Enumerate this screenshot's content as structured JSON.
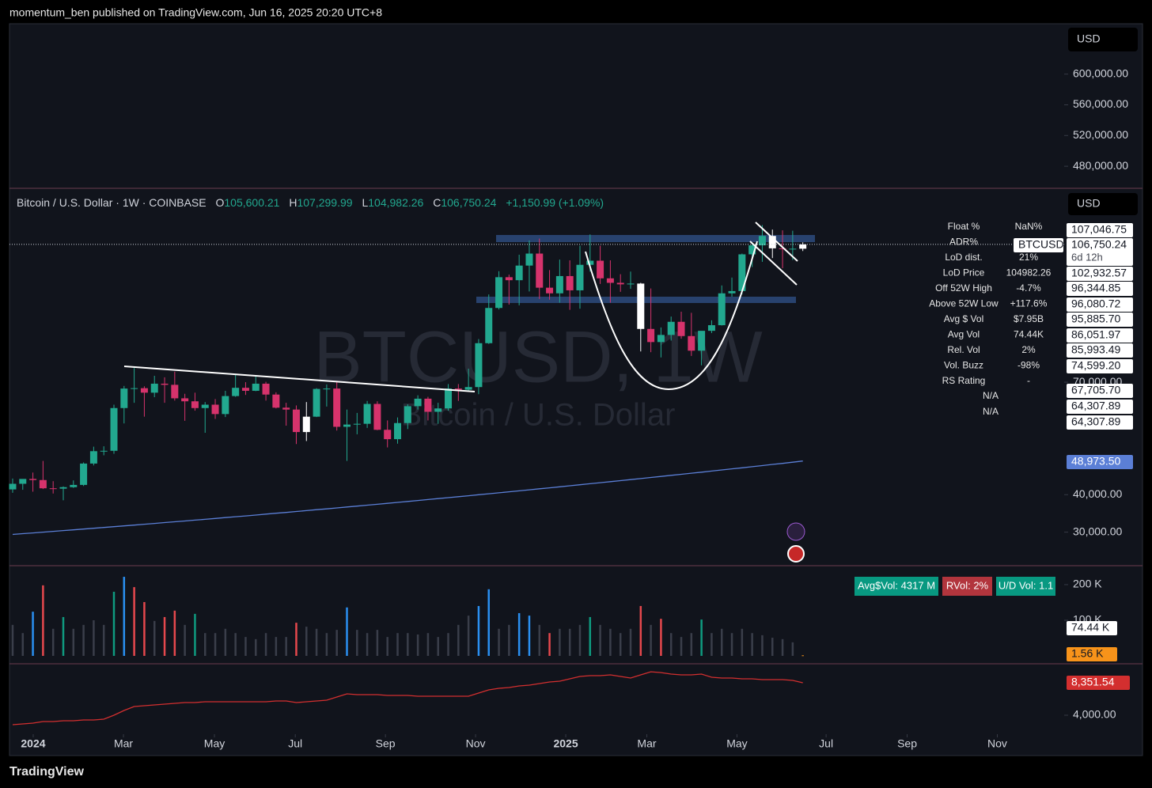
{
  "header": {
    "publisher": "momentum_ben published on TradingView.com, Jun 16, 2025 20:20 UTC+8"
  },
  "chart_data": {
    "type": "candlestick",
    "symbol": "Bitcoin / U.S. Dollar · 1W · COINBASE",
    "ohlc_labels": [
      {
        "key": "O",
        "label": "105,600.21"
      },
      {
        "key": "H",
        "label": "107,299.99"
      },
      {
        "key": "L",
        "label": "104,982.26"
      },
      {
        "key": "C",
        "label": "106,750.24"
      }
    ],
    "change": "+1,150.99 (+1.09%)",
    "watermark": [
      "BTCUSD, 1W",
      "Bitcoin / U.S. Dollar"
    ],
    "currency": "USD",
    "xlim": [
      -0.31,
      103.8
    ],
    "xticks": [
      {
        "value": 2.03,
        "label": "2024"
      },
      {
        "value": 10.94,
        "label": "Mar"
      },
      {
        "value": 19.92,
        "label": "May"
      },
      {
        "value": 27.9,
        "label": "Jul"
      },
      {
        "value": 36.8,
        "label": "Sep"
      },
      {
        "value": 45.7,
        "label": "Nov"
      },
      {
        "value": 54.6,
        "label": "2025"
      },
      {
        "value": 62.6,
        "label": "Mar"
      },
      {
        "value": 71.5,
        "label": "May"
      },
      {
        "value": 80.3,
        "label": "Jul"
      },
      {
        "value": 88.3,
        "label": "Sep"
      },
      {
        "value": 97.2,
        "label": "Nov"
      }
    ],
    "open": [
      41400,
      42900,
      44200,
      43900,
      41700,
      41600,
      42000,
      42600,
      48300,
      51600,
      51700,
      63100,
      68300,
      68400,
      67200,
      69600,
      69300,
      65700,
      64900,
      63100,
      64000,
      61500,
      66300,
      68500,
      67700,
      69600,
      66700,
      63200,
      62700,
      56700,
      60800,
      68200,
      68300,
      58100,
      58700,
      58900,
      64200,
      57300,
      54800,
      59100,
      63600,
      65600,
      62100,
      63000,
      68300,
      68000,
      68700,
      80400,
      89800,
      98000,
      97200,
      101100,
      104300,
      95200,
      93700,
      98300,
      94500,
      101300,
      102400,
      97700,
      96500,
      96100,
      96300,
      84200,
      80700,
      82600,
      86100,
      82300,
      78400,
      83700,
      85200,
      93700,
      94300,
      104100,
      106500,
      109000,
      105700,
      105600,
      105600.21
    ],
    "high": [
      44300,
      43800,
      45900,
      49000,
      43600,
      42200,
      43800,
      48600,
      52800,
      52900,
      64000,
      69000,
      73800,
      68900,
      71700,
      71300,
      72800,
      66900,
      67200,
      64700,
      65500,
      67700,
      71900,
      70000,
      71900,
      70100,
      67300,
      64500,
      63800,
      64700,
      68400,
      69400,
      70000,
      62700,
      61800,
      65000,
      64900,
      59800,
      60600,
      64100,
      66500,
      66100,
      64500,
      69500,
      69500,
      73600,
      81500,
      93400,
      99600,
      98700,
      104000,
      107800,
      108300,
      99900,
      102700,
      102500,
      106400,
      109400,
      106400,
      102500,
      98800,
      99500,
      96500,
      95000,
      84600,
      87500,
      88800,
      88500,
      83600,
      86500,
      95800,
      97900,
      104300,
      107100,
      111900,
      110700,
      110500,
      110400,
      107299.99
    ],
    "low": [
      40500,
      41300,
      40800,
      41500,
      40300,
      38500,
      41800,
      42300,
      47800,
      50500,
      50900,
      59000,
      64500,
      60800,
      66000,
      64500,
      65100,
      59700,
      62400,
      56500,
      60200,
      60700,
      66100,
      66600,
      67600,
      65100,
      63000,
      58400,
      53500,
      54300,
      60700,
      63500,
      57100,
      49000,
      56100,
      57800,
      57200,
      52600,
      53600,
      57500,
      62700,
      59800,
      58900,
      62400,
      65000,
      67600,
      66800,
      80200,
      89400,
      90700,
      90500,
      94200,
      92200,
      92000,
      91200,
      89300,
      89600,
      99500,
      96200,
      91200,
      94100,
      94900,
      78200,
      78000,
      76600,
      81100,
      81600,
      77000,
      74500,
      83100,
      85100,
      92800,
      93400,
      100700,
      102100,
      103100,
      100400,
      102600,
      104982.26
    ],
    "close": [
      42900,
      44200,
      43900,
      41700,
      41600,
      42000,
      42600,
      48300,
      51600,
      51700,
      63100,
      68300,
      68400,
      67200,
      69600,
      69300,
      65700,
      64900,
      63100,
      64000,
      61500,
      66300,
      68500,
      67700,
      69600,
      66700,
      63200,
      62700,
      56700,
      60800,
      68200,
      68300,
      58100,
      58700,
      58900,
      64200,
      57300,
      54800,
      59100,
      63600,
      65600,
      62100,
      63000,
      68300,
      68000,
      68700,
      80400,
      89800,
      98000,
      97200,
      101100,
      104300,
      95200,
      93700,
      98300,
      94500,
      101300,
      102400,
      97700,
      96500,
      96100,
      96300,
      84200,
      80700,
      82600,
      86100,
      82300,
      78400,
      83700,
      85200,
      93700,
      94300,
      104100,
      106500,
      109000,
      105700,
      105600,
      105600,
      106750.24
    ],
    "colors": {
      "up": "#22a88f",
      "down": "#d6336c",
      "white": "#ffffff"
    },
    "white_candles": [
      29,
      62,
      75,
      78
    ],
    "ylim": [
      21270,
      121500
    ],
    "yticks": [
      {
        "value": 70000,
        "label": "70,000.00"
      },
      {
        "value": 40000,
        "label": "40,000.00"
      },
      {
        "value": 30000,
        "label": "30,000.00"
      }
    ],
    "top_pane": {
      "ylim": [
        452300,
        664600
      ],
      "yticks": [
        {
          "value": 600000,
          "label": "600,000.00"
        },
        {
          "value": 560000,
          "label": "560,000.00"
        },
        {
          "value": 520000,
          "label": "520,000.00"
        },
        {
          "value": 480000,
          "label": "480,000.00"
        }
      ]
    },
    "moving_average": {
      "color": "#5b7fd6",
      "label": "48,973.50",
      "values": [
        29400,
        29600,
        29800,
        30010,
        30210,
        30420,
        30620,
        30830,
        31040,
        31250,
        31470,
        31680,
        31890,
        32110,
        32330,
        32550,
        32770,
        32990,
        33210,
        33430,
        33660,
        33890,
        34110,
        34340,
        34570,
        34810,
        35040,
        35270,
        35510,
        35750,
        35990,
        36220,
        36470,
        36710,
        36950,
        37200,
        37440,
        37690,
        37940,
        38190,
        38440,
        38690,
        38950,
        39200,
        39460,
        39720,
        39980,
        40240,
        40500,
        40760,
        41030,
        41290,
        41560,
        41830,
        42100,
        42370,
        42640,
        42910,
        43190,
        43460,
        43740,
        44020,
        44300,
        44580,
        44860,
        45150,
        45430,
        45720,
        46010,
        46300,
        46590,
        46880,
        47170,
        47460,
        47760,
        48060,
        48350,
        48650,
        48973.5
      ]
    },
    "current": {
      "symbol": "BTCUSD",
      "price": "106,750.24",
      "countdown": "6d 12h"
    },
    "price_labels": [
      "107,046.75",
      "102,932.57",
      "96,344.85",
      "96,080.72",
      "95,885.70",
      "86,051.97",
      "85,993.49",
      "74,599.20",
      "67,705.70",
      "64,307.89",
      "64,307.89"
    ],
    "stats": {
      "rows": [
        [
          "Float %",
          "NaN%"
        ],
        [
          "ADR%"
        ],
        [
          "LoD dist.",
          "21%"
        ],
        [
          "LoD Price",
          "104982.26"
        ],
        [
          "Off 52W High",
          "-4.7%"
        ],
        [
          "Above 52W Low",
          "+117.6%"
        ],
        [
          "Avg $ Vol",
          "$7.95B"
        ],
        [
          "Avg Vol",
          "74.44K"
        ],
        [
          "Rel. Vol",
          "2%"
        ],
        [
          "Vol. Buzz",
          "-98%"
        ],
        [
          "RS Rating",
          "-"
        ]
      ],
      "na": [
        "N/A",
        "N/A"
      ]
    },
    "volume": {
      "ylim": [
        -20000,
        251000
      ],
      "yticks": [
        {
          "value": 200000,
          "label": "200 K"
        },
        {
          "value": 100000,
          "label": "100 K"
        }
      ],
      "palette": {
        "n": "#3a3e4a",
        "u": "#0f9a7f",
        "d": "#e5484d",
        "b": "#2a8ff0",
        "o": "#f7931a"
      },
      "kinds": [
        "n",
        "n",
        "b",
        "d",
        "n",
        "u",
        "n",
        "n",
        "n",
        "n",
        "u",
        "b",
        "d",
        "d",
        "n",
        "d",
        "d",
        "n",
        "u",
        "n",
        "n",
        "n",
        "n",
        "n",
        "n",
        "n",
        "n",
        "n",
        "d",
        "n",
        "n",
        "n",
        "n",
        "b",
        "n",
        "n",
        "n",
        "n",
        "n",
        "n",
        "n",
        "n",
        "n",
        "n",
        "n",
        "n",
        "b",
        "b",
        "n",
        "n",
        "b",
        "b",
        "n",
        "d",
        "n",
        "n",
        "n",
        "u",
        "n",
        "n",
        "n",
        "n",
        "d",
        "n",
        "d",
        "n",
        "n",
        "n",
        "u",
        "n",
        "n",
        "n",
        "n",
        "n",
        "n",
        "n",
        "n",
        "n",
        "o"
      ],
      "values": [
        87000,
        64000,
        124000,
        198000,
        76000,
        109000,
        76000,
        87000,
        100000,
        87000,
        180000,
        222000,
        193000,
        151000,
        98000,
        109000,
        127000,
        87000,
        118000,
        64000,
        64000,
        76000,
        64000,
        53000,
        47000,
        64000,
        53000,
        53000,
        93000,
        82000,
        76000,
        64000,
        73000,
        136000,
        73000,
        64000,
        73000,
        53000,
        64000,
        64000,
        60000,
        64000,
        53000,
        64000,
        87000,
        113000,
        140000,
        187000,
        76000,
        87000,
        120000,
        113000,
        87000,
        64000,
        76000,
        76000,
        87000,
        109000,
        87000,
        76000,
        64000,
        76000,
        140000,
        87000,
        104000,
        64000,
        53000,
        64000,
        102000,
        64000,
        76000,
        64000,
        76000,
        64000,
        58000,
        51000,
        47000,
        38000,
        1560
      ],
      "badges": [
        {
          "label": "Avg$Vol: 4317 M",
          "color": "#089981"
        },
        {
          "label": "RVol: 2%",
          "color": "#b2353d"
        },
        {
          "label": "U/D Vol: 1.1",
          "color": "#089981"
        }
      ],
      "side_labels": [
        {
          "label": "74.44 K",
          "color": "#ffffff"
        },
        {
          "label": "1.56 K",
          "color": "#f7931a"
        }
      ]
    },
    "rs_line": {
      "color": "#d32f2f",
      "label": "8,351.54",
      "ylim": [
        1456,
        10790
      ],
      "yticks": [
        {
          "value": 4000,
          "label": "4,000.00"
        }
      ],
      "values": [
        2728,
        2834,
        2940,
        3152,
        3152,
        3258,
        3258,
        3364,
        3364,
        3470,
        4000,
        4636,
        5166,
        5272,
        5378,
        5484,
        5590,
        5696,
        5696,
        5802,
        5802,
        5802,
        5802,
        5802,
        5802,
        5802,
        5908,
        5908,
        5696,
        5802,
        5908,
        6014,
        6438,
        6862,
        6756,
        6756,
        6756,
        6650,
        6650,
        6650,
        6544,
        6544,
        6544,
        6544,
        6544,
        6544,
        6968,
        7392,
        7604,
        7710,
        7922,
        8028,
        8240,
        8452,
        8558,
        8876,
        9194,
        9300,
        9300,
        9406,
        9194,
        8982,
        9406,
        9830,
        9724,
        9512,
        9406,
        9406,
        9512,
        9088,
        8982,
        8982,
        8876,
        8876,
        8770,
        8770,
        8770,
        8664,
        8351.54
      ]
    }
  },
  "footer": {
    "brand": "TradingView"
  }
}
